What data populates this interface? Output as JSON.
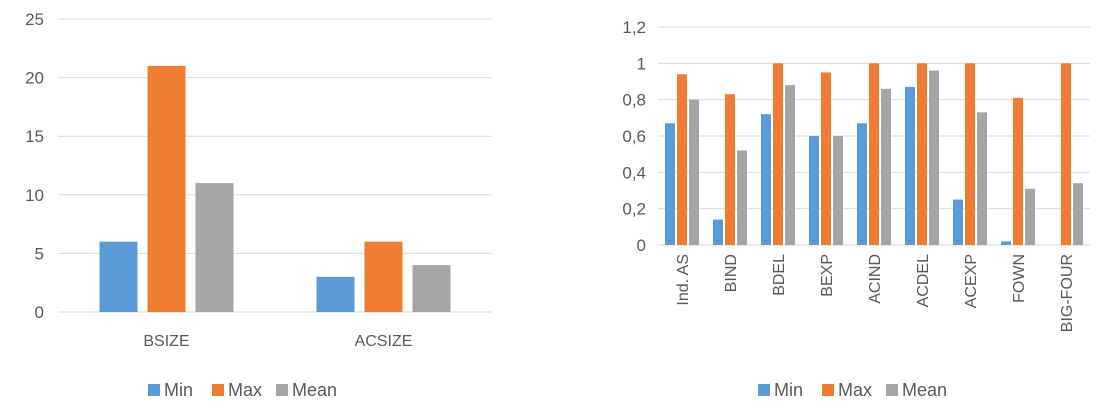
{
  "chart_data": [
    {
      "type": "bar",
      "categories": [
        "BSIZE",
        "ACSIZE"
      ],
      "series": [
        {
          "name": "Min",
          "values": [
            6,
            3
          ],
          "color": "#5b9bd5"
        },
        {
          "name": "Max",
          "values": [
            21,
            6
          ],
          "color": "#ed7d31"
        },
        {
          "name": "Mean",
          "values": [
            11,
            4
          ],
          "color": "#a5a5a5"
        }
      ],
      "y_ticks": [
        "0",
        "5",
        "10",
        "15",
        "20",
        "25"
      ],
      "ylim": [
        0,
        25
      ],
      "grid": true,
      "legend": "bottom"
    },
    {
      "type": "bar",
      "categories": [
        "Ind. AS",
        "BIND",
        "BDEL",
        "BEXP",
        "ACIND",
        "ACDEL",
        "ACEXP",
        "FOWN",
        "BIG-FOUR"
      ],
      "series": [
        {
          "name": "Min",
          "values": [
            0.67,
            0.14,
            0.72,
            0.6,
            0.67,
            0.87,
            0.25,
            0.02,
            0
          ],
          "color": "#5b9bd5"
        },
        {
          "name": "Max",
          "values": [
            0.94,
            0.83,
            1,
            0.95,
            1,
            1,
            1,
            0.81,
            1
          ],
          "color": "#ed7d31"
        },
        {
          "name": "Mean",
          "values": [
            0.8,
            0.52,
            0.88,
            0.6,
            0.86,
            0.96,
            0.73,
            0.31,
            0.34
          ],
          "color": "#a5a5a5"
        }
      ],
      "y_ticks": [
        "0",
        "0,2",
        "0,4",
        "0,6",
        "0,8",
        "1",
        "1,2"
      ],
      "ylim": [
        0,
        1.2
      ],
      "grid": true,
      "legend": "bottom"
    }
  ]
}
